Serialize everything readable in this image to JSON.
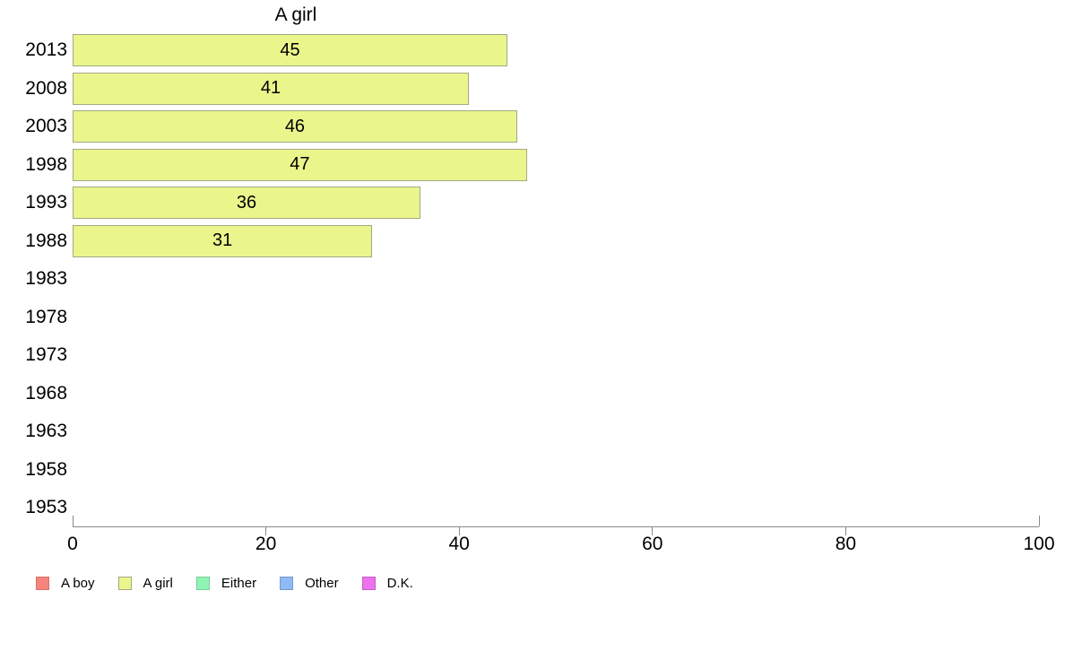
{
  "chart_data": {
    "type": "bar",
    "orientation": "horizontal",
    "title": "A girl",
    "categories": [
      "2013",
      "2008",
      "2003",
      "1998",
      "1993",
      "1988",
      "1983",
      "1978",
      "1973",
      "1968",
      "1963",
      "1958",
      "1953"
    ],
    "values": [
      45,
      41,
      46,
      47,
      36,
      31,
      null,
      null,
      null,
      null,
      null,
      null,
      null
    ],
    "bar_value_labels_shown": true,
    "xlabel": "",
    "ylabel": "",
    "xlim": [
      0,
      100
    ],
    "x_ticks": [
      0,
      20,
      40,
      60,
      80,
      100
    ],
    "grid": "off",
    "bar_fill": "#EAF68C",
    "bar_border": "#A3A884",
    "axis_color": "#8A8A8A",
    "text_color": "#000000",
    "legend_position": "bottom-left",
    "legend": [
      {
        "label": "A boy",
        "color": "#F8837D",
        "border": "#D9706B"
      },
      {
        "label": "A girl",
        "color": "#EAF68C",
        "border": "#A3A884"
      },
      {
        "label": "Either",
        "color": "#8FF5B5",
        "border": "#77CD96"
      },
      {
        "label": "Other",
        "color": "#90BAF5",
        "border": "#7598CC"
      },
      {
        "label": "D.K.",
        "color": "#EE72F0",
        "border": "#C25DC4"
      }
    ]
  }
}
